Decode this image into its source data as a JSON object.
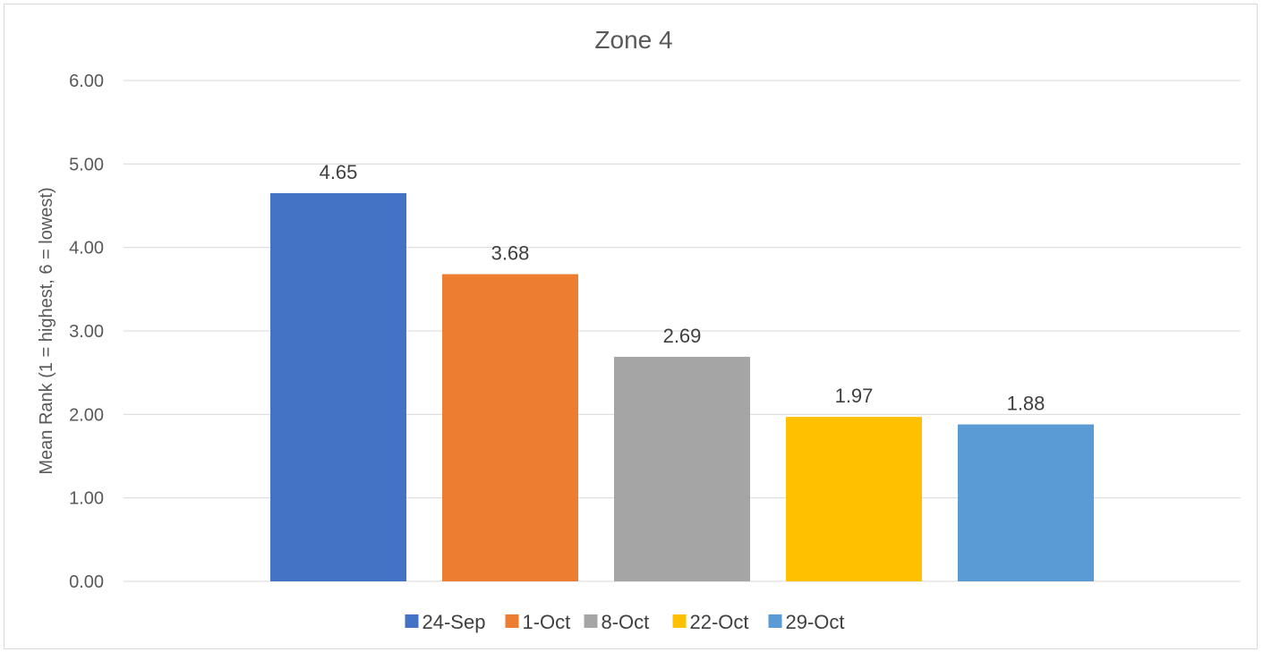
{
  "chart_data": {
    "type": "bar",
    "title": "Zone 4",
    "xlabel": "",
    "ylabel": "Mean Rank (1 = highest, 6 = lowest)",
    "ylim": [
      0,
      6
    ],
    "yticks": [
      "0.00",
      "1.00",
      "2.00",
      "3.00",
      "4.00",
      "5.00",
      "6.00"
    ],
    "grid": true,
    "legend_position": "bottom",
    "series": [
      {
        "name": "24-Sep",
        "value": 4.65,
        "label": "4.65",
        "color": "#4472C4"
      },
      {
        "name": "1-Oct",
        "value": 3.68,
        "label": "3.68",
        "color": "#ED7D31"
      },
      {
        "name": "8-Oct",
        "value": 2.69,
        "label": "2.69",
        "color": "#A5A5A5"
      },
      {
        "name": "22-Oct",
        "value": 1.97,
        "label": "1.97",
        "color": "#FFC000"
      },
      {
        "name": "29-Oct",
        "value": 1.88,
        "label": "1.88",
        "color": "#5B9BD5"
      }
    ]
  }
}
